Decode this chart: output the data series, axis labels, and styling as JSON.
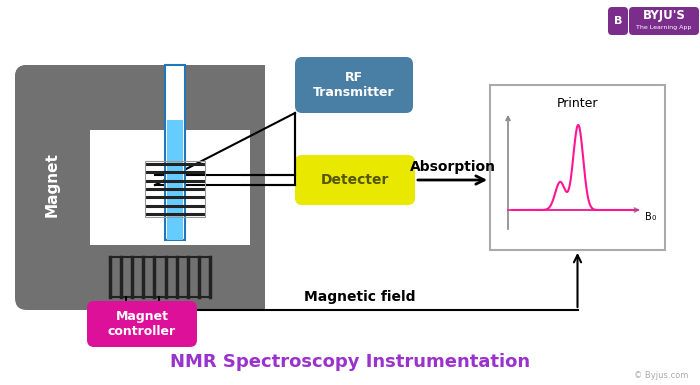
{
  "title": "NMR Spectroscopy Instrumentation",
  "title_color": "#9933cc",
  "title_fontsize": 13,
  "bg_color": "#ffffff",
  "magnet_color": "#717171",
  "magnet_label": "Magnet",
  "rf_box_color": "#4a7fa5",
  "rf_label": "RF\nTransmitter",
  "detector_color": "#e8e800",
  "detector_label": "Detecter",
  "detector_text_color": "#555500",
  "absorption_label": "Absorption",
  "printer_label": "Printer",
  "magnet_ctrl_color": "#dd1199",
  "magnet_ctrl_label": "Magnet\ncontroller",
  "mag_field_label": "Magnetic field",
  "byju_text": "© Byjus.com",
  "peak_color": "#ff1493",
  "tube_color": "#66ccff",
  "coil_color": "#222222",
  "arrow_color": "#111111",
  "byju_purple": "#7B2D8B"
}
